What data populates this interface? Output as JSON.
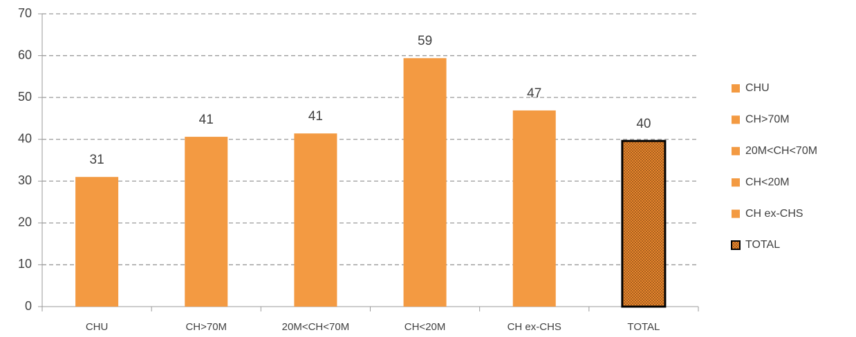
{
  "chart_data": {
    "type": "bar",
    "categories": [
      "CHU",
      "CH>70M",
      "20M<CH<70M",
      "CH<20M",
      "CH ex-CHS",
      "TOTAL"
    ],
    "values": [
      31,
      40.6,
      41.4,
      59.4,
      46.9,
      39.6
    ],
    "value_labels": [
      "31",
      "41",
      "41",
      "59",
      "47",
      "40"
    ],
    "colors": [
      "#f39a42",
      "#f39a42",
      "#f39a42",
      "#f39a42",
      "#f39a42",
      "#e8872e"
    ],
    "bar_styles": [
      "solid",
      "solid",
      "solid",
      "solid",
      "solid",
      "dotted"
    ],
    "ylim": [
      0,
      70
    ],
    "yticks": [
      0,
      10,
      20,
      30,
      40,
      50,
      60,
      70
    ],
    "grid": true,
    "legend": "right"
  }
}
